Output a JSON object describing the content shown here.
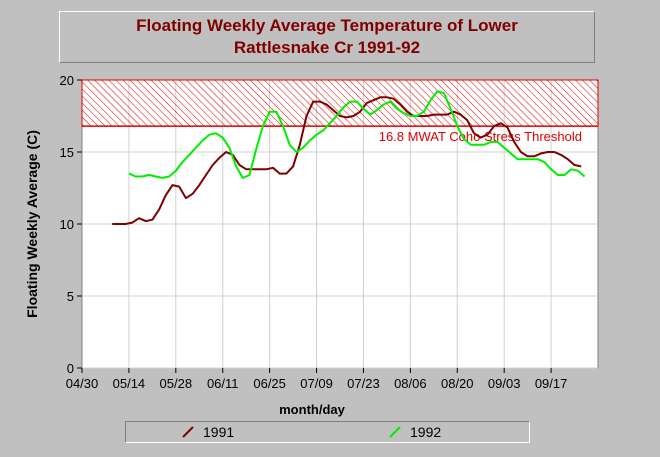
{
  "chart_data": {
    "type": "line",
    "title_lines": [
      "Floating Weekly Average Temperature of Lower",
      "Rattlesnake Cr 1991-92"
    ],
    "xlabel": "month/day",
    "ylabel": "Floating Weekly Average (C)",
    "x_tick_labels": [
      "04/30",
      "05/14",
      "05/28",
      "06/11",
      "06/25",
      "07/09",
      "07/23",
      "08/06",
      "08/20",
      "09/03",
      "09/17"
    ],
    "x_tick_day_of_year": [
      120,
      134,
      148,
      162,
      176,
      190,
      204,
      218,
      232,
      246,
      260
    ],
    "xlim_day_of_year": [
      120,
      274
    ],
    "ylim": [
      0,
      20
    ],
    "y_ticks": [
      0,
      5,
      10,
      15,
      20
    ],
    "grid": true,
    "threshold": {
      "value": 16.8,
      "label": "16.8 MWAT Coho Stress Threshold",
      "color": "#e00000"
    },
    "series": [
      {
        "name": "1991",
        "color": "#800000",
        "x_day_of_year": [
          129,
          131,
          133,
          135,
          137,
          139,
          141,
          143,
          145,
          147,
          149,
          151,
          153,
          155,
          157,
          159,
          161,
          163,
          165,
          167,
          169,
          171,
          173,
          175,
          177,
          179,
          181,
          183,
          185,
          187,
          189,
          191,
          193,
          195,
          197,
          199,
          201,
          203,
          205,
          207,
          209,
          211,
          213,
          215,
          217,
          219,
          221,
          223,
          225,
          227,
          229,
          231,
          233,
          235,
          237,
          239,
          241,
          243,
          245,
          247,
          249,
          251,
          253,
          255,
          257,
          259,
          261,
          263,
          265,
          267,
          269
        ],
        "values": [
          10.0,
          10.0,
          10.0,
          10.1,
          10.4,
          10.2,
          10.3,
          11.0,
          12.0,
          12.7,
          12.6,
          11.8,
          12.1,
          12.7,
          13.4,
          14.1,
          14.6,
          15.0,
          14.8,
          14.1,
          13.8,
          13.8,
          13.8,
          13.8,
          13.9,
          13.5,
          13.5,
          14.0,
          15.5,
          17.5,
          18.5,
          18.5,
          18.3,
          17.9,
          17.5,
          17.4,
          17.5,
          17.8,
          18.4,
          18.6,
          18.8,
          18.8,
          18.7,
          18.3,
          17.8,
          17.5,
          17.5,
          17.5,
          17.6,
          17.6,
          17.6,
          17.8,
          17.6,
          17.2,
          16.3,
          16.0,
          16.2,
          16.8,
          17.0,
          16.7,
          15.7,
          15.0,
          14.7,
          14.7,
          14.9,
          15.0,
          15.0,
          14.8,
          14.5,
          14.1,
          14.0
        ]
      },
      {
        "name": "1992",
        "color": "#00ee00",
        "x_day_of_year": [
          134,
          136,
          138,
          140,
          142,
          144,
          146,
          148,
          150,
          152,
          154,
          156,
          158,
          160,
          162,
          164,
          166,
          168,
          170,
          172,
          174,
          176,
          178,
          180,
          182,
          184,
          186,
          188,
          190,
          192,
          194,
          196,
          198,
          200,
          202,
          204,
          206,
          208,
          210,
          212,
          214,
          216,
          218,
          220,
          222,
          224,
          226,
          228,
          230,
          232,
          234,
          236,
          238,
          240,
          242,
          244,
          246,
          248,
          250,
          252,
          254,
          256,
          258,
          260,
          262,
          264,
          266,
          268,
          270
        ],
        "values": [
          13.5,
          13.3,
          13.3,
          13.4,
          13.3,
          13.2,
          13.3,
          13.7,
          14.3,
          14.8,
          15.3,
          15.8,
          16.2,
          16.3,
          16.0,
          15.3,
          14.0,
          13.2,
          13.4,
          15.2,
          16.8,
          17.8,
          17.8,
          16.8,
          15.5,
          15.0,
          15.3,
          15.8,
          16.2,
          16.5,
          17.0,
          17.5,
          18.1,
          18.5,
          18.5,
          18.0,
          17.6,
          17.9,
          18.3,
          18.5,
          18.0,
          17.7,
          17.5,
          17.5,
          17.8,
          18.6,
          19.2,
          19.1,
          18.0,
          16.8,
          15.9,
          15.5,
          15.5,
          15.5,
          15.7,
          15.7,
          15.3,
          14.9,
          14.5,
          14.5,
          14.5,
          14.5,
          14.3,
          13.8,
          13.4,
          13.4,
          13.8,
          13.7,
          13.3
        ]
      }
    ]
  },
  "legend": [
    {
      "label": "1991",
      "color": "#800000"
    },
    {
      "label": "1992",
      "color": "#00ee00"
    }
  ]
}
